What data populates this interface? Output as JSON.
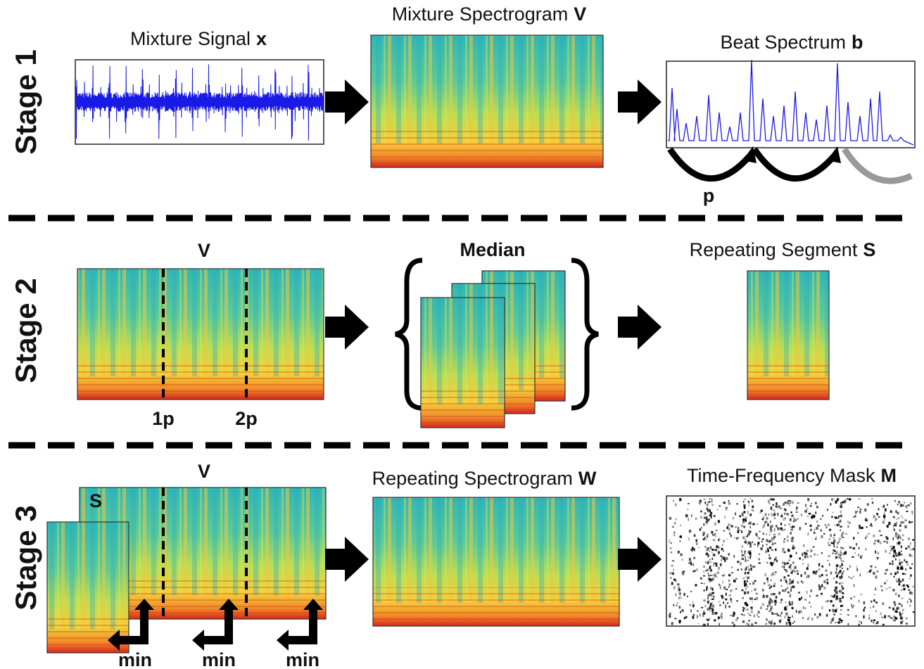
{
  "stage_labels": [
    "Stage 1",
    "Stage 2",
    "Stage 3"
  ],
  "stage1": {
    "signal_title": {
      "text": "Mixture Signal",
      "symbol": "x"
    },
    "spectrogram_title": {
      "text": "Mixture Spectrogram",
      "symbol": "V"
    },
    "beat_title": {
      "text": "Beat Spectrum",
      "symbol": "b"
    },
    "period_label": "p"
  },
  "stage2": {
    "spectrogram_label": "V",
    "markers": [
      "1p",
      "2p"
    ],
    "median_label": "Median",
    "segment_title": {
      "text": "Repeating Segment",
      "symbol": "S"
    }
  },
  "stage3": {
    "spectrogram_label": "V",
    "segment_label": "S",
    "min_labels": [
      "min",
      "min",
      "min"
    ],
    "repeating_title": {
      "text": "Repeating Spectrogram",
      "symbol": "W"
    },
    "mask_title": {
      "text": "Time-Frequency Mask",
      "symbol": "M"
    }
  }
}
